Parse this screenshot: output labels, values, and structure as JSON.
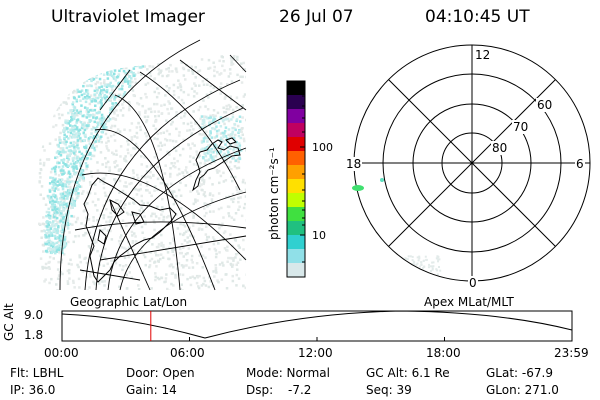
{
  "header": {
    "instrument": "Ultraviolet Imager",
    "date": "26 Jul 07",
    "time": "04:10:45 UT"
  },
  "colorbar": {
    "unit_label": "photon cm⁻²s⁻¹",
    "ticks": [
      "100",
      "10"
    ],
    "colors": [
      "#000000",
      "#2a0050",
      "#8000a0",
      "#c00060",
      "#e00000",
      "#ff6000",
      "#ffa000",
      "#ffe000",
      "#c0ff00",
      "#40e040",
      "#20c080",
      "#30d0d0",
      "#90e0e8",
      "#d8e8ea"
    ]
  },
  "left_panel": {
    "label": "Geographic Lat/Lon"
  },
  "right_panel": {
    "label": "Apex MLat/MLT",
    "mlt_labels": [
      "12",
      "18",
      "6",
      "0"
    ],
    "mlat_labels": [
      "60",
      "70",
      "80"
    ]
  },
  "timeline": {
    "ylabel": "GC Alt",
    "y_ticks": [
      "9.0",
      "1.8"
    ],
    "x_ticks": [
      "00:00",
      "06:00",
      "12:00",
      "18:00",
      "23:59"
    ],
    "current_marker_hours": 4.18
  },
  "info": {
    "filter": "Flt: LBHL",
    "ip": "IP: 36.0",
    "door": "Door: Open",
    "gain": "Gain: 14",
    "mode": "Mode: Normal",
    "dsp_label": "Dsp:",
    "dsp_value": "-7.2",
    "gc_alt": "GC Alt: 6.1 Re",
    "seq": "Seq: 39",
    "glat": "GLat: -67.9",
    "glon": "GLon: 271.0"
  }
}
